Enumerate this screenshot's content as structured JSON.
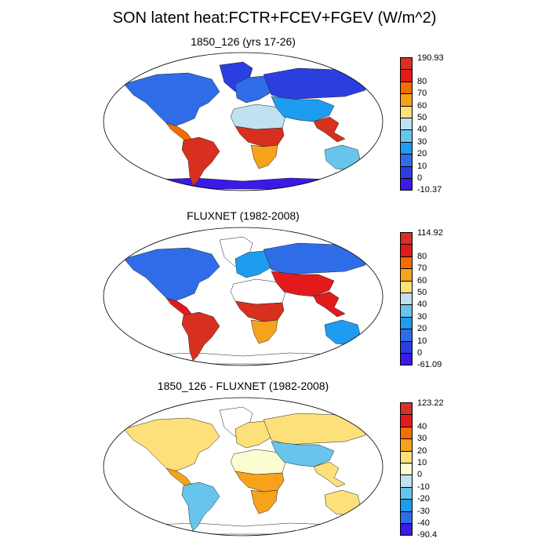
{
  "title": "SON latent heat:FCTR+FCEV+FGEV (W/m^2)",
  "panels": [
    {
      "title": "1850_126 (yrs 17-26)",
      "colorbar": {
        "labels": [
          "190.93",
          "80",
          "70",
          "60",
          "50",
          "40",
          "30",
          "20",
          "10",
          "0",
          "-10.37"
        ],
        "colors": [
          "#d73027",
          "#e31a1c",
          "#f46d00",
          "#f7a21b",
          "#fee07a",
          "#bfe1f0",
          "#67c5ec",
          "#1e9cf0",
          "#2f6de8",
          "#2b3fe0",
          "#3a1ae8"
        ]
      }
    },
    {
      "title": "FLUXNET (1982-2008)",
      "colorbar": {
        "labels": [
          "114.92",
          "80",
          "70",
          "60",
          "50",
          "40",
          "30",
          "20",
          "10",
          "0",
          "-61.09"
        ],
        "colors": [
          "#d73027",
          "#e31a1c",
          "#f46d00",
          "#f7a21b",
          "#fee07a",
          "#bfe1f0",
          "#67c5ec",
          "#1e9cf0",
          "#2f6de8",
          "#2b3fe0",
          "#3a1ae8"
        ]
      }
    },
    {
      "title": "1850_126 - FLUXNET (1982-2008)",
      "colorbar": {
        "labels": [
          "123.22",
          "40",
          "30",
          "20",
          "10",
          "0",
          "-10",
          "-20",
          "-30",
          "-40",
          "-90.4"
        ],
        "colors": [
          "#d73027",
          "#e31a1c",
          "#f46d00",
          "#f7a21b",
          "#fee07a",
          "#fdfbd0",
          "#bfe1f0",
          "#67c5ec",
          "#1e9cf0",
          "#2f6de8",
          "#3a1ae8"
        ]
      }
    }
  ],
  "region_colors": {
    "p0": {
      "north_america": "#2f6de8",
      "central_america": "#f46d00",
      "south_america": "#d7301f",
      "africa_north": "#bfe1f0",
      "africa_central": "#d7301f",
      "africa_south": "#f7a21b",
      "europe": "#2f6de8",
      "asia_north": "#2b3fe0",
      "asia_south": "#1e9cf0",
      "se_asia": "#d7301f",
      "australia": "#67c5ec",
      "greenland": "#2b3fe0",
      "antarctica": "#3a1ae8"
    },
    "p1": {
      "north_america": "#2f6de8",
      "central_america": "#e31a1c",
      "south_america": "#d7301f",
      "africa_north": "#ffffff",
      "africa_central": "#d7301f",
      "africa_south": "#f7a21b",
      "europe": "#1e9cf0",
      "asia_north": "#2f6de8",
      "asia_south": "#e31a1c",
      "se_asia": "#e31a1c",
      "australia": "#1e9cf0",
      "greenland": "#ffffff",
      "antarctica": "#ffffff"
    },
    "p2": {
      "north_america": "#fee07a",
      "central_america": "#f7a21b",
      "south_america": "#67c5ec",
      "africa_north": "#fdfbd0",
      "africa_central": "#f7a21b",
      "africa_south": "#f7a21b",
      "europe": "#fee07a",
      "asia_north": "#fee07a",
      "asia_south": "#67c5ec",
      "se_asia": "#fee07a",
      "australia": "#fee07a",
      "greenland": "#ffffff",
      "antarctica": "#ffffff"
    }
  }
}
